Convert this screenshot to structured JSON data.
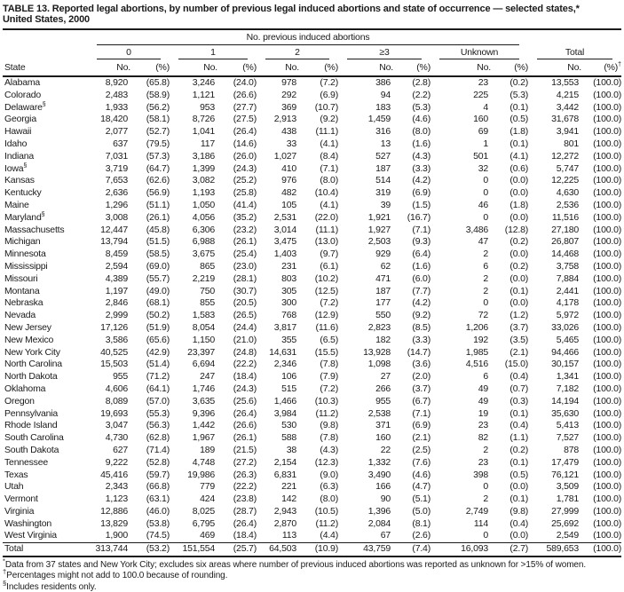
{
  "title": {
    "line1": "TABLE 13. Reported legal abortions, by number of previous legal induced abortions and state of occurrence — selected states,*",
    "line2": "United States, 2000"
  },
  "table": {
    "spanner": "No. previous induced abortions",
    "groups": [
      "0",
      "1",
      "2",
      "≥3",
      "Unknown"
    ],
    "total_label": "Total",
    "state_header": "State",
    "no_header": "No.",
    "pct_header": "(%)",
    "dagger": "†",
    "rows": [
      {
        "state": "Alabama",
        "marker": "",
        "cells": [
          "8,920",
          "(65.8)",
          "3,246",
          "(24.0)",
          "978",
          "(7.2)",
          "386",
          "(2.8)",
          "23",
          "(0.2)",
          "13,553",
          "(100.0)"
        ]
      },
      {
        "state": "Colorado",
        "marker": "",
        "cells": [
          "2,483",
          "(58.9)",
          "1,121",
          "(26.6)",
          "292",
          "(6.9)",
          "94",
          "(2.2)",
          "225",
          "(5.3)",
          "4,215",
          "(100.0)"
        ]
      },
      {
        "state": "Delaware",
        "marker": "§",
        "cells": [
          "1,933",
          "(56.2)",
          "953",
          "(27.7)",
          "369",
          "(10.7)",
          "183",
          "(5.3)",
          "4",
          "(0.1)",
          "3,442",
          "(100.0)"
        ]
      },
      {
        "state": "Georgia",
        "marker": "",
        "cells": [
          "18,420",
          "(58.1)",
          "8,726",
          "(27.5)",
          "2,913",
          "(9.2)",
          "1,459",
          "(4.6)",
          "160",
          "(0.5)",
          "31,678",
          "(100.0)"
        ]
      },
      {
        "state": "Hawaii",
        "marker": "",
        "cells": [
          "2,077",
          "(52.7)",
          "1,041",
          "(26.4)",
          "438",
          "(11.1)",
          "316",
          "(8.0)",
          "69",
          "(1.8)",
          "3,941",
          "(100.0)"
        ]
      },
      {
        "state": "Idaho",
        "marker": "",
        "cells": [
          "637",
          "(79.5)",
          "117",
          "(14.6)",
          "33",
          "(4.1)",
          "13",
          "(1.6)",
          "1",
          "(0.1)",
          "801",
          "(100.0)"
        ]
      },
      {
        "state": "Indiana",
        "marker": "",
        "cells": [
          "7,031",
          "(57.3)",
          "3,186",
          "(26.0)",
          "1,027",
          "(8.4)",
          "527",
          "(4.3)",
          "501",
          "(4.1)",
          "12,272",
          "(100.0)"
        ]
      },
      {
        "state": "Iowa",
        "marker": "§",
        "cells": [
          "3,719",
          "(64.7)",
          "1,399",
          "(24.3)",
          "410",
          "(7.1)",
          "187",
          "(3.3)",
          "32",
          "(0.6)",
          "5,747",
          "(100.0)"
        ]
      },
      {
        "state": "Kansas",
        "marker": "",
        "cells": [
          "7,653",
          "(62.6)",
          "3,082",
          "(25.2)",
          "976",
          "(8.0)",
          "514",
          "(4.2)",
          "0",
          "(0.0)",
          "12,225",
          "(100.0)"
        ]
      },
      {
        "state": "Kentucky",
        "marker": "",
        "cells": [
          "2,636",
          "(56.9)",
          "1,193",
          "(25.8)",
          "482",
          "(10.4)",
          "319",
          "(6.9)",
          "0",
          "(0.0)",
          "4,630",
          "(100.0)"
        ]
      },
      {
        "state": "Maine",
        "marker": "",
        "cells": [
          "1,296",
          "(51.1)",
          "1,050",
          "(41.4)",
          "105",
          "(4.1)",
          "39",
          "(1.5)",
          "46",
          "(1.8)",
          "2,536",
          "(100.0)"
        ]
      },
      {
        "state": "Maryland",
        "marker": "§",
        "cells": [
          "3,008",
          "(26.1)",
          "4,056",
          "(35.2)",
          "2,531",
          "(22.0)",
          "1,921",
          "(16.7)",
          "0",
          "(0.0)",
          "11,516",
          "(100.0)"
        ]
      },
      {
        "state": "Massachusetts",
        "marker": "",
        "cells": [
          "12,447",
          "(45.8)",
          "6,306",
          "(23.2)",
          "3,014",
          "(11.1)",
          "1,927",
          "(7.1)",
          "3,486",
          "(12.8)",
          "27,180",
          "(100.0)"
        ]
      },
      {
        "state": "Michigan",
        "marker": "",
        "cells": [
          "13,794",
          "(51.5)",
          "6,988",
          "(26.1)",
          "3,475",
          "(13.0)",
          "2,503",
          "(9.3)",
          "47",
          "(0.2)",
          "26,807",
          "(100.0)"
        ]
      },
      {
        "state": "Minnesota",
        "marker": "",
        "cells": [
          "8,459",
          "(58.5)",
          "3,675",
          "(25.4)",
          "1,403",
          "(9.7)",
          "929",
          "(6.4)",
          "2",
          "(0.0)",
          "14,468",
          "(100.0)"
        ]
      },
      {
        "state": "Mississippi",
        "marker": "",
        "cells": [
          "2,594",
          "(69.0)",
          "865",
          "(23.0)",
          "231",
          "(6.1)",
          "62",
          "(1.6)",
          "6",
          "(0.2)",
          "3,758",
          "(100.0)"
        ]
      },
      {
        "state": "Missouri",
        "marker": "",
        "cells": [
          "4,389",
          "(55.7)",
          "2,219",
          "(28.1)",
          "803",
          "(10.2)",
          "471",
          "(6.0)",
          "2",
          "(0.0)",
          "7,884",
          "(100.0)"
        ]
      },
      {
        "state": "Montana",
        "marker": "",
        "cells": [
          "1,197",
          "(49.0)",
          "750",
          "(30.7)",
          "305",
          "(12.5)",
          "187",
          "(7.7)",
          "2",
          "(0.1)",
          "2,441",
          "(100.0)"
        ]
      },
      {
        "state": "Nebraska",
        "marker": "",
        "cells": [
          "2,846",
          "(68.1)",
          "855",
          "(20.5)",
          "300",
          "(7.2)",
          "177",
          "(4.2)",
          "0",
          "(0.0)",
          "4,178",
          "(100.0)"
        ]
      },
      {
        "state": "Nevada",
        "marker": "",
        "cells": [
          "2,999",
          "(50.2)",
          "1,583",
          "(26.5)",
          "768",
          "(12.9)",
          "550",
          "(9.2)",
          "72",
          "(1.2)",
          "5,972",
          "(100.0)"
        ]
      },
      {
        "state": "New Jersey",
        "marker": "",
        "cells": [
          "17,126",
          "(51.9)",
          "8,054",
          "(24.4)",
          "3,817",
          "(11.6)",
          "2,823",
          "(8.5)",
          "1,206",
          "(3.7)",
          "33,026",
          "(100.0)"
        ]
      },
      {
        "state": "New Mexico",
        "marker": "",
        "cells": [
          "3,586",
          "(65.6)",
          "1,150",
          "(21.0)",
          "355",
          "(6.5)",
          "182",
          "(3.3)",
          "192",
          "(3.5)",
          "5,465",
          "(100.0)"
        ]
      },
      {
        "state": "New York City",
        "marker": "",
        "cells": [
          "40,525",
          "(42.9)",
          "23,397",
          "(24.8)",
          "14,631",
          "(15.5)",
          "13,928",
          "(14.7)",
          "1,985",
          "(2.1)",
          "94,466",
          "(100.0)"
        ]
      },
      {
        "state": "North Carolina",
        "marker": "",
        "cells": [
          "15,503",
          "(51.4)",
          "6,694",
          "(22.2)",
          "2,346",
          "(7.8)",
          "1,098",
          "(3.6)",
          "4,516",
          "(15.0)",
          "30,157",
          "(100.0)"
        ]
      },
      {
        "state": "North Dakota",
        "marker": "",
        "cells": [
          "955",
          "(71.2)",
          "247",
          "(18.4)",
          "106",
          "(7.9)",
          "27",
          "(2.0)",
          "6",
          "(0.4)",
          "1,341",
          "(100.0)"
        ]
      },
      {
        "state": "Oklahoma",
        "marker": "",
        "cells": [
          "4,606",
          "(64.1)",
          "1,746",
          "(24.3)",
          "515",
          "(7.2)",
          "266",
          "(3.7)",
          "49",
          "(0.7)",
          "7,182",
          "(100.0)"
        ]
      },
      {
        "state": "Oregon",
        "marker": "",
        "cells": [
          "8,089",
          "(57.0)",
          "3,635",
          "(25.6)",
          "1,466",
          "(10.3)",
          "955",
          "(6.7)",
          "49",
          "(0.3)",
          "14,194",
          "(100.0)"
        ]
      },
      {
        "state": "Pennsylvania",
        "marker": "",
        "cells": [
          "19,693",
          "(55.3)",
          "9,396",
          "(26.4)",
          "3,984",
          "(11.2)",
          "2,538",
          "(7.1)",
          "19",
          "(0.1)",
          "35,630",
          "(100.0)"
        ]
      },
      {
        "state": "Rhode Island",
        "marker": "",
        "cells": [
          "3,047",
          "(56.3)",
          "1,442",
          "(26.6)",
          "530",
          "(9.8)",
          "371",
          "(6.9)",
          "23",
          "(0.4)",
          "5,413",
          "(100.0)"
        ]
      },
      {
        "state": "South Carolina",
        "marker": "",
        "cells": [
          "4,730",
          "(62.8)",
          "1,967",
          "(26.1)",
          "588",
          "(7.8)",
          "160",
          "(2.1)",
          "82",
          "(1.1)",
          "7,527",
          "(100.0)"
        ]
      },
      {
        "state": "South Dakota",
        "marker": "",
        "cells": [
          "627",
          "(71.4)",
          "189",
          "(21.5)",
          "38",
          "(4.3)",
          "22",
          "(2.5)",
          "2",
          "(0.2)",
          "878",
          "(100.0)"
        ]
      },
      {
        "state": "Tennessee",
        "marker": "",
        "cells": [
          "9,222",
          "(52.8)",
          "4,748",
          "(27.2)",
          "2,154",
          "(12.3)",
          "1,332",
          "(7.6)",
          "23",
          "(0.1)",
          "17,479",
          "(100.0)"
        ]
      },
      {
        "state": "Texas",
        "marker": "",
        "cells": [
          "45,416",
          "(59.7)",
          "19,986",
          "(26.3)",
          "6,831",
          "(9.0)",
          "3,490",
          "(4.6)",
          "398",
          "(0.5)",
          "76,121",
          "(100.0)"
        ]
      },
      {
        "state": "Utah",
        "marker": "",
        "cells": [
          "2,343",
          "(66.8)",
          "779",
          "(22.2)",
          "221",
          "(6.3)",
          "166",
          "(4.7)",
          "0",
          "(0.0)",
          "3,509",
          "(100.0)"
        ]
      },
      {
        "state": "Vermont",
        "marker": "",
        "cells": [
          "1,123",
          "(63.1)",
          "424",
          "(23.8)",
          "142",
          "(8.0)",
          "90",
          "(5.1)",
          "2",
          "(0.1)",
          "1,781",
          "(100.0)"
        ]
      },
      {
        "state": "Virginia",
        "marker": "",
        "cells": [
          "12,886",
          "(46.0)",
          "8,025",
          "(28.7)",
          "2,943",
          "(10.5)",
          "1,396",
          "(5.0)",
          "2,749",
          "(9.8)",
          "27,999",
          "(100.0)"
        ]
      },
      {
        "state": "Washington",
        "marker": "",
        "cells": [
          "13,829",
          "(53.8)",
          "6,795",
          "(26.4)",
          "2,870",
          "(11.2)",
          "2,084",
          "(8.1)",
          "114",
          "(0.4)",
          "25,692",
          "(100.0)"
        ]
      },
      {
        "state": "West Virginia",
        "marker": "",
        "cells": [
          "1,900",
          "(74.5)",
          "469",
          "(18.4)",
          "113",
          "(4.4)",
          "67",
          "(2.6)",
          "0",
          "(0.0)",
          "2,549",
          "(100.0)"
        ]
      }
    ],
    "total_row": {
      "state": "Total",
      "marker": "",
      "cells": [
        "313,744",
        "(53.2)",
        "151,554",
        "(25.7)",
        "64,503",
        "(10.9)",
        "43,759",
        "(7.4)",
        "16,093",
        "(2.7)",
        "589,653",
        "(100.0)"
      ]
    }
  },
  "footnotes": [
    {
      "marker": "*",
      "text": "Data from 37 states and New York City; excludes six areas where number of previous induced abortions was reported as unknown for >15% of women."
    },
    {
      "marker": "†",
      "text": "Percentages might not add to 100.0 because of rounding."
    },
    {
      "marker": "§",
      "text": "Includes residents only."
    }
  ]
}
